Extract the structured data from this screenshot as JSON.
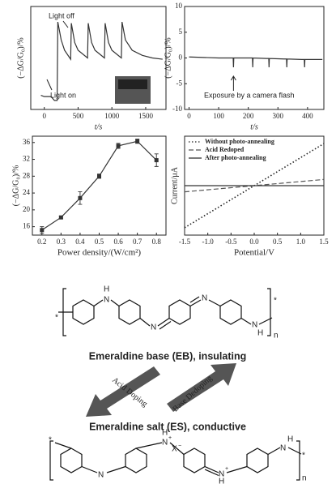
{
  "chart_data": [
    {
      "type": "line",
      "xlabel": "t/s",
      "ylabel": "(−ΔG/G₀)/%",
      "xlim": [
        -200,
        1800
      ],
      "xticks": [
        0,
        500,
        1000,
        1500
      ],
      "ylim": [
        -5,
        35
      ],
      "annotations": [
        "Light off",
        "Light on"
      ],
      "x": [
        -50,
        0,
        100,
        150,
        190,
        200,
        250,
        300,
        390,
        400,
        450,
        500,
        640,
        650,
        700,
        750,
        890,
        900,
        950,
        1000,
        1140,
        1150,
        1200,
        1300,
        1450,
        1600,
        1750
      ],
      "series": [
        {
          "color": "#333333",
          "line_style": "solid",
          "values": [
            0.5,
            0,
            0,
            -1.5,
            -1.5,
            29,
            22,
            18,
            14.5,
            28.5,
            21,
            18,
            15,
            28.5,
            21,
            18,
            15,
            28.5,
            21,
            18,
            15,
            29,
            22,
            18,
            16,
            15,
            14.5
          ]
        }
      ]
    },
    {
      "type": "line",
      "xlabel": "t/s",
      "ylabel": "(−ΔG/G₀)/%",
      "xlim": [
        -15,
        455
      ],
      "xticks": [
        0,
        100,
        200,
        300,
        400
      ],
      "ylim": [
        -10,
        10
      ],
      "yticks": [
        -10,
        -5,
        0,
        5,
        10
      ],
      "annotations": [
        "Exposure by a camera flash"
      ],
      "x": [
        0,
        50,
        100,
        149,
        150,
        151,
        200,
        214,
        215,
        216,
        260,
        269,
        270,
        271,
        320,
        329,
        330,
        331,
        380,
        389,
        390,
        391,
        440,
        450
      ],
      "series": [
        {
          "color": "#333333",
          "line_style": "solid",
          "values": [
            0.2,
            0.1,
            0,
            0,
            -1.8,
            0,
            0,
            0,
            -1.8,
            0,
            -0.1,
            -0.1,
            -1.8,
            -0.1,
            -0.2,
            -0.2,
            -1.8,
            -0.2,
            -0.3,
            -0.3,
            -1.8,
            -0.3,
            -0.3,
            -0.3
          ]
        }
      ]
    },
    {
      "type": "line",
      "xlabel": "Power density/(W/cm²)",
      "ylabel": "(−ΔG/G₀)/%",
      "xlim": [
        0.15,
        0.85
      ],
      "xticks": [
        0.2,
        0.3,
        0.4,
        0.5,
        0.6,
        0.7,
        0.8
      ],
      "ylim": [
        14,
        37.5
      ],
      "yticks": [
        16,
        20,
        24,
        28,
        32,
        36
      ],
      "markers": true,
      "x": [
        0.2,
        0.3,
        0.4,
        0.5,
        0.6,
        0.7,
        0.8
      ],
      "series": [
        {
          "color": "#333333",
          "line_style": "solid",
          "values": [
            15.2,
            18.2,
            22.8,
            28,
            35.2,
            36.3,
            31.8
          ],
          "errors": [
            0.8,
            0.3,
            1.5,
            0.5,
            0.6,
            0.5,
            1.5
          ]
        }
      ]
    },
    {
      "type": "line",
      "xlabel": "Potential/V",
      "ylabel": "Current/μA",
      "xlim": [
        -1.5,
        1.5
      ],
      "xticks": [
        -1.5,
        {
          "value": -1,
          "label": "-1.0"
        },
        -0.5,
        {
          "value": 0,
          "label": "0.0"
        },
        0.5,
        {
          "value": 1,
          "label": "1.0"
        },
        1.5
      ],
      "ylim": [
        -20,
        20
      ],
      "legend": "upper left",
      "x": [
        -1.5,
        1.5
      ],
      "series": [
        {
          "name": "Without photo-annealing",
          "color": "#222222",
          "line_style": "dotted",
          "values": [
            -17,
            17
          ]
        },
        {
          "name": "Acid Redoped",
          "color": "#555555",
          "line_style": "dashed",
          "values": [
            -2.5,
            2.5
          ]
        },
        {
          "name": "After photo-annealing",
          "color": "#333333",
          "line_style": "solid",
          "values": [
            0,
            0
          ]
        }
      ]
    }
  ],
  "diagram": {
    "eb_label": "Emeraldine base (EB), insulating",
    "es_label": "Emeraldine salt (ES), conductive",
    "forward": "Acid Doping",
    "backward": "Base Dedoping",
    "eb_atoms": [
      "*",
      "H",
      "N",
      "N",
      "N",
      "N",
      "H",
      "*",
      "n"
    ],
    "es_atoms": [
      "*",
      "N",
      "H",
      "H",
      "N",
      "+",
      "X",
      "−",
      "N",
      "+",
      "H",
      "N",
      "H",
      "*",
      "n"
    ]
  }
}
